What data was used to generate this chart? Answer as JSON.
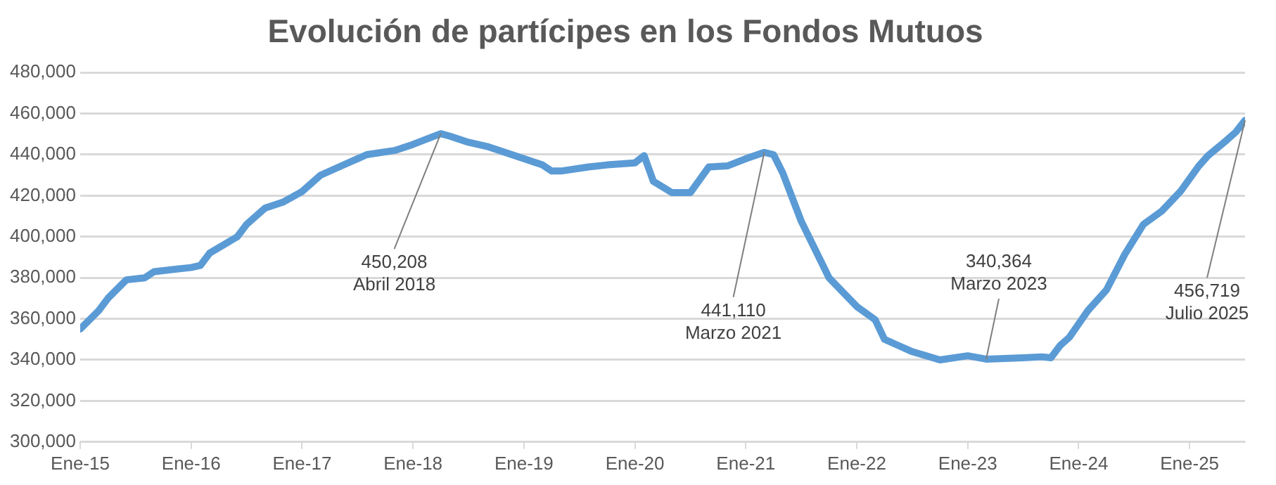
{
  "chart_data": {
    "type": "line",
    "title": "Evolución de partícipes en los Fondos Mutuos",
    "x": [
      "2015-01",
      "2015-03",
      "2015-04",
      "2015-06",
      "2015-08",
      "2015-09",
      "2016-01",
      "2016-02",
      "2016-03",
      "2016-06",
      "2016-07",
      "2016-09",
      "2016-11",
      "2017-01",
      "2017-03",
      "2017-05",
      "2017-08",
      "2017-11",
      "2018-01",
      "2018-04",
      "2018-05",
      "2018-07",
      "2018-09",
      "2019-01",
      "2019-03",
      "2019-04",
      "2019-05",
      "2019-08",
      "2019-10",
      "2020-01",
      "2020-02",
      "2020-03",
      "2020-05",
      "2020-07",
      "2020-09",
      "2020-11",
      "2021-01",
      "2021-03",
      "2021-04",
      "2021-05",
      "2021-07",
      "2021-10",
      "2022-01",
      "2022-03",
      "2022-04",
      "2022-07",
      "2022-10",
      "2023-01",
      "2023-03",
      "2023-07",
      "2023-09",
      "2023-10",
      "2023-11",
      "2023-12",
      "2024-02",
      "2024-04",
      "2024-06",
      "2024-08",
      "2024-10",
      "2024-12",
      "2025-02",
      "2025-03",
      "2025-05",
      "2025-06",
      "2025-07"
    ],
    "series": [
      {
        "color": "#5b9bd5",
        "values": [
          355000,
          364000,
          370000,
          379000,
          380000,
          383000,
          385000,
          386000,
          392000,
          400000,
          406000,
          414000,
          417000,
          422000,
          430000,
          434000,
          440000,
          442000,
          445000,
          450208,
          449000,
          446000,
          444000,
          438000,
          435000,
          432000,
          432000,
          434000,
          435000,
          436000,
          439500,
          427000,
          421500,
          421500,
          434000,
          434500,
          438000,
          441110,
          440000,
          431000,
          407500,
          380000,
          366000,
          359500,
          350000,
          344000,
          340000,
          342000,
          340364,
          341000,
          341500,
          341000,
          347000,
          351000,
          364000,
          374000,
          391500,
          406000,
          412500,
          422000,
          434500,
          439500,
          447000,
          451000,
          456719
        ]
      }
    ],
    "xlim": [
      "2015-01",
      "2025-07"
    ],
    "xticks": [
      {
        "value": "2015-01",
        "label": "Ene-15"
      },
      {
        "value": "2016-01",
        "label": "Ene-16"
      },
      {
        "value": "2017-01",
        "label": "Ene-17"
      },
      {
        "value": "2018-01",
        "label": "Ene-18"
      },
      {
        "value": "2019-01",
        "label": "Ene-19"
      },
      {
        "value": "2020-01",
        "label": "Ene-20"
      },
      {
        "value": "2021-01",
        "label": "Ene-21"
      },
      {
        "value": "2022-01",
        "label": "Ene-22"
      },
      {
        "value": "2023-01",
        "label": "Ene-23"
      },
      {
        "value": "2024-01",
        "label": "Ene-24"
      },
      {
        "value": "2025-01",
        "label": "Ene-25"
      }
    ],
    "ylim": [
      300000,
      480000
    ],
    "yticks": [
      {
        "value": 300000,
        "label": "300,000"
      },
      {
        "value": 320000,
        "label": "320,000"
      },
      {
        "value": 340000,
        "label": "340,000"
      },
      {
        "value": 360000,
        "label": "360,000"
      },
      {
        "value": 380000,
        "label": "380,000"
      },
      {
        "value": 400000,
        "label": "400,000"
      },
      {
        "value": 420000,
        "label": "420,000"
      },
      {
        "value": 440000,
        "label": "440,000"
      },
      {
        "value": 460000,
        "label": "460,000"
      },
      {
        "value": 480000,
        "label": "480,000"
      }
    ],
    "grid": "y",
    "legend": false,
    "marker": "none",
    "line_style": "solid",
    "annotations": [
      {
        "text": "450,208\nAbril 2018",
        "x": "2018-04",
        "y": 450208
      },
      {
        "text": "441,110\nMarzo 2021",
        "x": "2021-03",
        "y": 441110
      },
      {
        "text": "340,364\nMarzo 2023",
        "x": "2023-03",
        "y": 340364
      },
      {
        "text": "456,719\nJulio 2025",
        "x": "2025-07",
        "y": 456719
      }
    ]
  }
}
